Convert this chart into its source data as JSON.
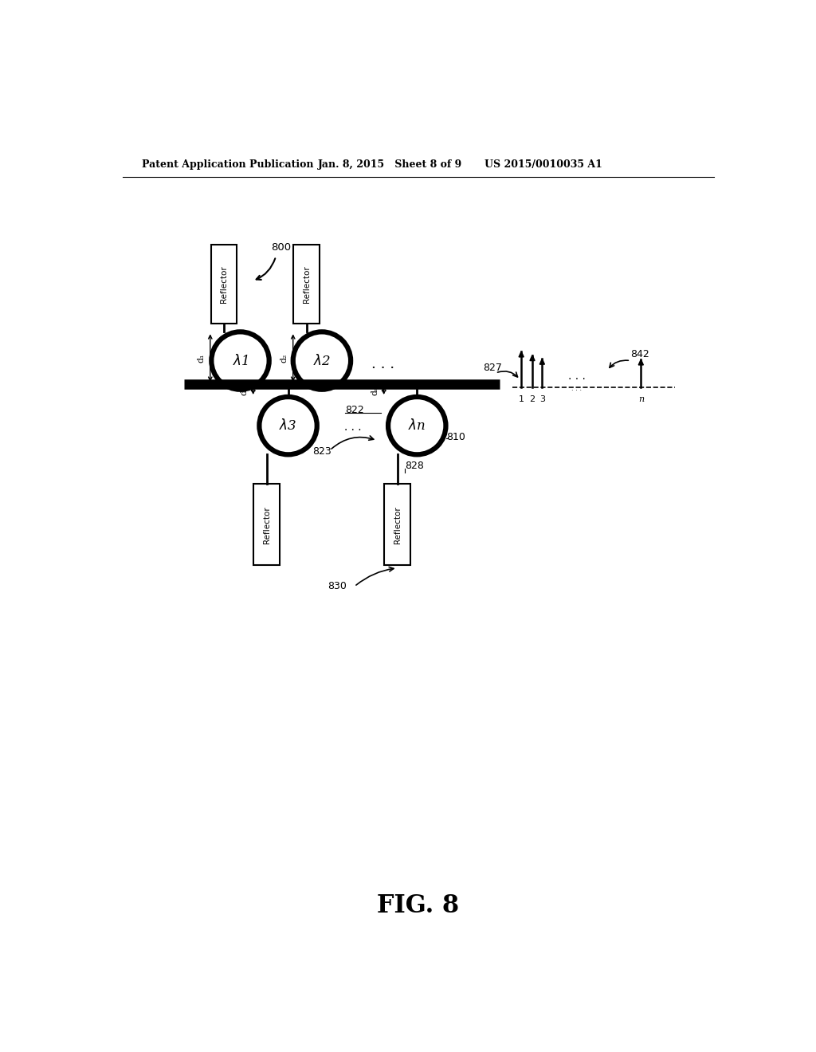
{
  "bg_color": "#ffffff",
  "header_left": "Patent Application Publication",
  "header_mid": "Jan. 8, 2015   Sheet 8 of 9",
  "header_right": "US 2015/0010035 A1",
  "figure_label": "FIG. 8",
  "fig_number": "800",
  "label_842": "842",
  "label_827": "827",
  "label_822": "822",
  "label_823": "823",
  "label_810": "810",
  "label_828": "828",
  "label_830": "830"
}
